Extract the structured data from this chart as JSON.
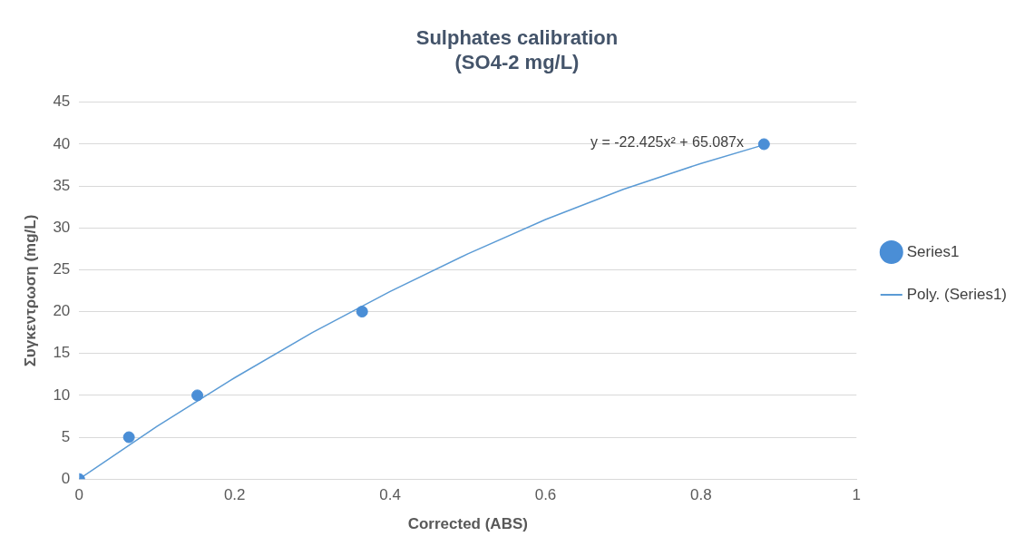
{
  "chart_data": {
    "type": "scatter",
    "title": "Sulphates calibration\n(SO4-2 mg/L)",
    "xlabel": "Corrected (ABS)",
    "ylabel": "Συγκεντρωση (mg/L)",
    "series": [
      {
        "name": "Series1",
        "color": "#4a8ed6",
        "x": [
          0,
          0.064,
          0.152,
          0.364,
          0.881
        ],
        "values": [
          0,
          5,
          10,
          20,
          40
        ]
      },
      {
        "name": "Poly. (Series1)",
        "type": "line",
        "marker": "none",
        "color": "#5b9bd5",
        "x": [
          0,
          0.1,
          0.2,
          0.3,
          0.4,
          0.5,
          0.6,
          0.7,
          0.8,
          0.88
        ],
        "values": [
          0,
          6.3,
          12.1,
          17.5,
          22.4,
          26.9,
          31.0,
          34.6,
          37.7,
          39.9
        ]
      }
    ],
    "xlim": [
      0,
      1
    ],
    "xticks": [
      0,
      0.2,
      0.4,
      0.6,
      0.8,
      1
    ],
    "ylim": [
      0,
      45
    ],
    "yticks": [
      0,
      5,
      10,
      15,
      20,
      25,
      30,
      35,
      40,
      45
    ],
    "grid": "y",
    "legend": "right",
    "marker": "circle",
    "annotations": [
      "y = -22.425x² + 65.087x"
    ]
  }
}
